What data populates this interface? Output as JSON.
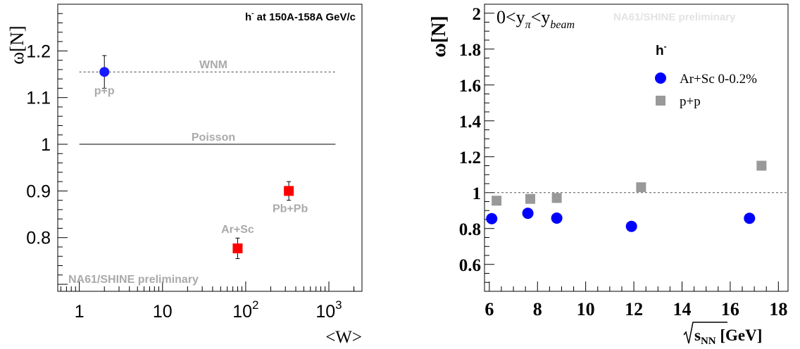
{
  "chart_data": [
    {
      "type": "scatter",
      "title": "h- at 150A-158A GeV/c",
      "title_parts": {
        "particle": "h",
        "charge": "-",
        "rest": " at 150A-158A GeV/c"
      },
      "xlabel": "<W>",
      "ylabel": "ω[N]",
      "xscale": "log",
      "xlim": [
        0.55,
        2500
      ],
      "ylim": [
        0.685,
        1.3
      ],
      "xticks": [
        {
          "value": 1,
          "base": "1",
          "exp": ""
        },
        {
          "value": 10,
          "base": "10",
          "exp": ""
        },
        {
          "value": 100,
          "base": "10",
          "exp": "2"
        },
        {
          "value": 1000,
          "base": "10",
          "exp": "3"
        }
      ],
      "yticks": [
        {
          "value": 0.8,
          "label": "0.8"
        },
        {
          "value": 0.9,
          "label": "0.9"
        },
        {
          "value": 1.0,
          "label": "1"
        },
        {
          "value": 1.1,
          "label": "1.1"
        },
        {
          "value": 1.2,
          "label": "1.2"
        }
      ],
      "reference_lines": [
        {
          "label": "WNM",
          "y": 1.155,
          "x_from": 1,
          "x_to": 1200,
          "style": "dotted"
        },
        {
          "label": "Poisson",
          "y": 1.0,
          "x_from": 1,
          "x_to": 1200,
          "style": "solid"
        }
      ],
      "points": [
        {
          "label": "p+p",
          "x": 2,
          "y": 1.155,
          "err": 0.035,
          "color": "#1a1aff",
          "marker": "circle"
        },
        {
          "label": "Ar+Sc",
          "x": 80,
          "y": 0.777,
          "err": 0.022,
          "color": "#ff0000",
          "marker": "square"
        },
        {
          "label": "Pb+Pb",
          "x": 330,
          "y": 0.9,
          "err": 0.02,
          "color": "#ff0000",
          "marker": "square"
        }
      ],
      "watermark": "NA61/SHINE preliminary",
      "grid": false
    },
    {
      "type": "scatter",
      "title": "",
      "rapidity_label": {
        "lead": "0<y",
        "sub1": "π",
        "mid": "<y",
        "sub2": "beam"
      },
      "xlabel": "√sNN [GeV]",
      "xlabel_parts": {
        "main": "s",
        "sub": "NN",
        "unit": " [GeV]"
      },
      "ylabel": "ω[N]",
      "xlim": [
        5.8,
        18.4
      ],
      "ylim": [
        0.45,
        2.05
      ],
      "xticks": [
        6,
        8,
        10,
        12,
        14,
        16,
        18
      ],
      "yticks": [
        {
          "value": 0.6,
          "label": "0.6"
        },
        {
          "value": 0.8,
          "label": "0.8"
        },
        {
          "value": 1.0,
          "label": "1"
        },
        {
          "value": 1.2,
          "label": "1.2"
        },
        {
          "value": 1.4,
          "label": "1.4"
        },
        {
          "value": 1.6,
          "label": "1.6"
        },
        {
          "value": 1.8,
          "label": "1.8"
        },
        {
          "value": 2.0,
          "label": "2"
        }
      ],
      "reference_lines": [
        {
          "label": "",
          "y": 1.0,
          "style": "dashed"
        }
      ],
      "legend": {
        "title_particle": "h",
        "title_charge": "-",
        "placement": "top-right"
      },
      "series": [
        {
          "name": "Ar+Sc 0-0.2%",
          "color": "#0000ff",
          "marker": "circle",
          "x": [
            6.1,
            7.6,
            8.8,
            11.9,
            16.8
          ],
          "y": [
            0.855,
            0.885,
            0.858,
            0.812,
            0.857
          ]
        },
        {
          "name": "p+p",
          "color": "#999999",
          "marker": "square",
          "x": [
            6.3,
            7.7,
            8.8,
            12.3,
            17.3
          ],
          "y": [
            0.955,
            0.965,
            0.97,
            1.03,
            1.15
          ]
        }
      ],
      "watermark": "NA61/SHINE preliminary",
      "grid": false
    }
  ]
}
